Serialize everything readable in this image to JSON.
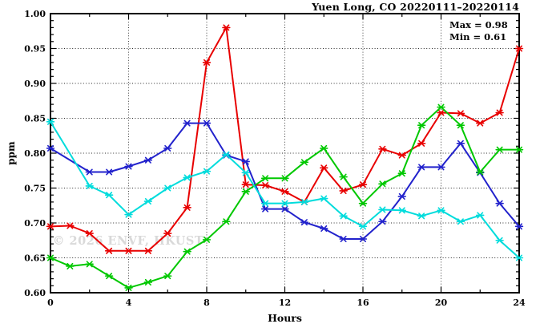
{
  "chart_data": {
    "type": "line",
    "title": "Yuen Long, CO 20220111–20220114",
    "xlabel": "Hours",
    "ylabel": "ppm",
    "xlim": [
      0,
      24
    ],
    "ylim": [
      0.6,
      1.0
    ],
    "grid": "dotted lines at every major tick",
    "legend": "none",
    "x_ticks": [
      "0",
      "4",
      "8",
      "12",
      "16",
      "20",
      "24"
    ],
    "x_tick_values": [
      0,
      4,
      8,
      12,
      16,
      20,
      24
    ],
    "x_minor_step": 2,
    "y_ticks": [
      "0.60",
      "0.65",
      "0.70",
      "0.75",
      "0.80",
      "0.85",
      "0.90",
      "0.95",
      "1.00"
    ],
    "y_tick_values": [
      0.6,
      0.65,
      0.7,
      0.75,
      0.8,
      0.85,
      0.9,
      0.95,
      1.0
    ],
    "y_minor_step": 0.01,
    "x": [
      0,
      1,
      2,
      3,
      4,
      5,
      6,
      7,
      8,
      9,
      10,
      11,
      12,
      13,
      14,
      15,
      16,
      17,
      18,
      19,
      20,
      21,
      22,
      23,
      24
    ],
    "series": [
      {
        "name": "red",
        "color": "#e80000",
        "values": [
          0.695,
          0.696,
          0.685,
          0.66,
          0.66,
          0.66,
          0.685,
          0.722,
          0.93,
          0.98,
          0.755,
          0.754,
          0.745,
          0.73,
          0.779,
          0.746,
          0.755,
          0.806,
          0.797,
          0.814,
          0.858,
          0.857,
          0.843,
          0.858,
          0.95
        ]
      },
      {
        "name": "blue",
        "color": "#2222cc",
        "values": [
          0.807,
          null,
          0.773,
          0.773,
          0.781,
          0.79,
          0.807,
          0.843,
          0.843,
          0.797,
          0.788,
          0.72,
          0.72,
          0.701,
          0.692,
          0.677,
          0.677,
          0.702,
          0.738,
          0.78,
          0.78,
          0.814,
          0.772,
          0.728,
          0.695
        ]
      },
      {
        "name": "green",
        "color": "#00c800",
        "values": [
          0.65,
          0.638,
          0.641,
          0.624,
          0.607,
          0.615,
          0.624,
          0.659,
          0.676,
          0.702,
          0.745,
          0.764,
          0.764,
          0.787,
          0.807,
          0.766,
          0.728,
          0.756,
          0.771,
          0.84,
          0.866,
          0.84,
          0.773,
          0.805,
          0.805
        ]
      },
      {
        "name": "cyan",
        "color": "#00dcdc",
        "values": [
          0.845,
          null,
          0.753,
          0.74,
          0.712,
          0.731,
          0.75,
          0.765,
          0.774,
          0.798,
          0.772,
          0.728,
          0.728,
          0.73,
          0.735,
          0.71,
          0.695,
          0.719,
          0.718,
          0.71,
          0.718,
          0.702,
          0.711,
          0.675,
          0.65
        ]
      }
    ],
    "annotations": {
      "max": "Max = 0.98",
      "min": "Min = 0.61"
    },
    "watermark": "© 2026 ENVF, HKUST"
  }
}
